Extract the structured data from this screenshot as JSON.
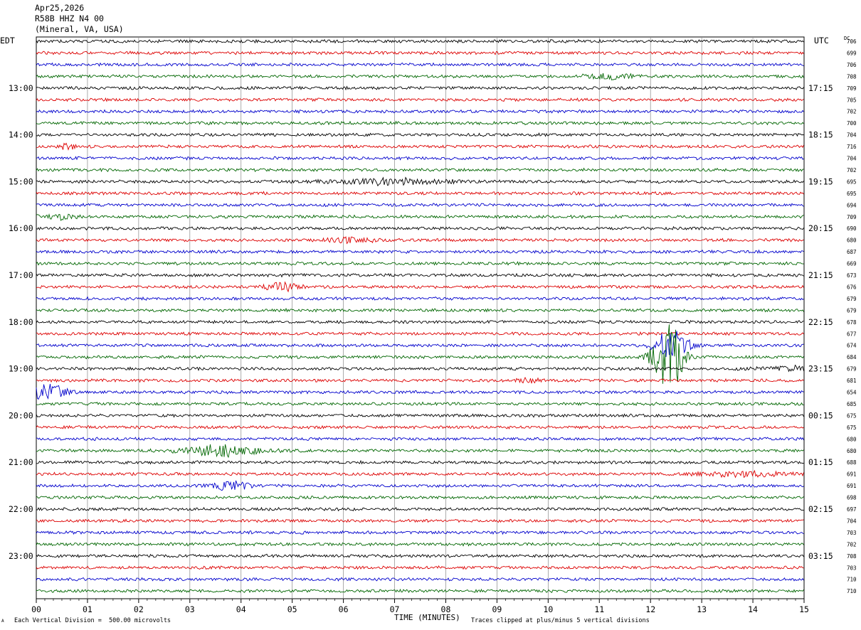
{
  "header": {
    "date": "Apr25,2026",
    "station": "R58B HHZ N4 00",
    "location": "(Mineral, VA, USA)"
  },
  "left_zone": "EDT",
  "right_zone": "UTC",
  "dc_label": "DC",
  "footer": {
    "scale_note": "Each Vertical Division =  500.00 microvolts",
    "clip_note": "Traces clipped at plus/minus 5 vertical divisions",
    "corner_mark": "A"
  },
  "chart_data": {
    "type": "line",
    "xlabel": "TIME (MINUTES)",
    "x_ticks": [
      "00",
      "01",
      "02",
      "03",
      "04",
      "05",
      "06",
      "07",
      "08",
      "09",
      "10",
      "11",
      "12",
      "13",
      "14",
      "15"
    ],
    "xlim": [
      0,
      15
    ],
    "trace_colors": [
      "#000000",
      "#dd0000",
      "#0000cc",
      "#006600"
    ],
    "left_hour_labels": [
      "13:00",
      "14:00",
      "15:00",
      "16:00",
      "17:00",
      "18:00",
      "19:00",
      "20:00",
      "21:00",
      "22:00",
      "23:00"
    ],
    "right_hour_labels": [
      "17:15",
      "18:15",
      "19:15",
      "20:15",
      "21:15",
      "22:15",
      "23:15",
      "00:15",
      "01:15",
      "02:15",
      "03:15"
    ],
    "dc_offsets": [
      706,
      699,
      706,
      708,
      709,
      705,
      702,
      700,
      704,
      716,
      704,
      702,
      695,
      695,
      694,
      709,
      690,
      680,
      687,
      669,
      673,
      676,
      679,
      679,
      678,
      677,
      674,
      684,
      679,
      681,
      654,
      685,
      675,
      675,
      680,
      680,
      688,
      691,
      691,
      698,
      697,
      704,
      703,
      702,
      708,
      703,
      710,
      710
    ],
    "events": [
      {
        "trace": 12,
        "minute": 6.9,
        "width_min": 2.0,
        "amp": 3.5
      },
      {
        "trace": 27,
        "minute": 12.35,
        "width_min": 0.5,
        "amp": 45
      },
      {
        "trace": 26,
        "minute": 12.4,
        "width_min": 0.6,
        "amp": 20
      },
      {
        "trace": 30,
        "minute": 0.2,
        "width_min": 0.6,
        "amp": 12
      },
      {
        "trace": 35,
        "minute": 3.6,
        "width_min": 1.2,
        "amp": 8
      },
      {
        "trace": 38,
        "minute": 3.8,
        "width_min": 0.6,
        "amp": 6
      },
      {
        "trace": 21,
        "minute": 4.8,
        "width_min": 0.5,
        "amp": 6
      },
      {
        "trace": 3,
        "minute": 11.2,
        "width_min": 0.8,
        "amp": 3.5
      },
      {
        "trace": 9,
        "minute": 0.6,
        "width_min": 0.2,
        "amp": 5
      },
      {
        "trace": 17,
        "minute": 6.2,
        "width_min": 0.8,
        "amp": 3
      },
      {
        "trace": 37,
        "minute": 13.8,
        "width_min": 1.4,
        "amp": 3
      },
      {
        "trace": 28,
        "minute": 14.8,
        "width_min": 1.0,
        "amp": 3
      },
      {
        "trace": 29,
        "minute": 9.6,
        "width_min": 0.4,
        "amp": 3
      },
      {
        "trace": 15,
        "minute": 0.4,
        "width_min": 0.6,
        "amp": 3
      }
    ]
  }
}
